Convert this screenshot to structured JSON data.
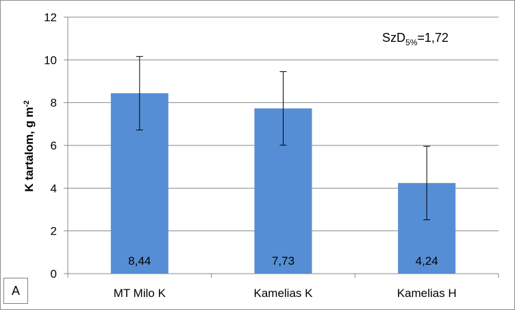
{
  "chart_data": {
    "type": "bar",
    "categories": [
      "MT Milo K",
      "Kamelias K",
      "Kamelias H"
    ],
    "values": [
      8.44,
      7.73,
      4.24
    ],
    "value_labels": [
      "8,44",
      "7,73",
      "4,24"
    ],
    "error_bars": [
      {
        "low": 6.72,
        "high": 10.16
      },
      {
        "low": 6.01,
        "high": 9.45
      },
      {
        "low": 2.52,
        "high": 5.96
      }
    ],
    "title": "",
    "xlabel": "",
    "ylabel": "K tartalom, g m",
    "ylabel_superscript": "-2",
    "ylim": [
      0,
      12
    ],
    "yticks": [
      0,
      2,
      4,
      6,
      8,
      10,
      12
    ],
    "grid": true,
    "bar_color": "#558ed5",
    "annotation": {
      "main": "SzD",
      "subscript": "5%",
      "value": "=1,72"
    },
    "panel_label": "A"
  }
}
